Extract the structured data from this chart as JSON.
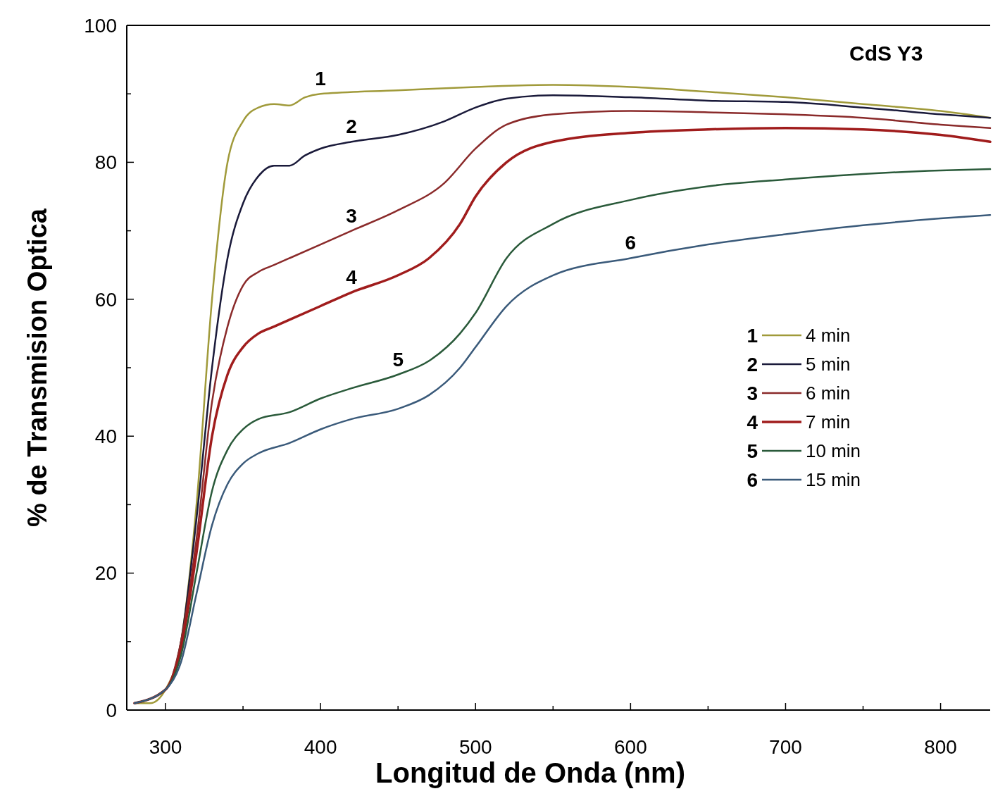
{
  "chart_data": {
    "type": "line",
    "xlabel": "Longitud de Onda (nm)",
    "ylabel": "% de Transmision Optica",
    "xlim": [
      275,
      832
    ],
    "ylim": [
      0,
      100
    ],
    "xticks": [
      300,
      {
        "value": 350,
        "label": null
      },
      400,
      {
        "value": 450,
        "label": null
      },
      500,
      {
        "value": 550,
        "label": null
      },
      600,
      {
        "value": 650,
        "label": null
      },
      700,
      {
        "value": 750,
        "label": null
      },
      800
    ],
    "yticks": [
      0,
      {
        "value": 10,
        "label": null
      },
      20,
      {
        "value": 30,
        "label": null
      },
      40,
      {
        "value": 50,
        "label": null
      },
      60,
      {
        "value": 70,
        "label": null
      },
      80,
      {
        "value": 90,
        "label": null
      },
      100
    ],
    "grid": false,
    "legend": "right",
    "marker": "none",
    "line_style": "solid",
    "series": [
      {
        "name": "4 min",
        "color": "#a09a3a",
        "x": [
          280,
          290,
          300,
          310,
          320,
          330,
          340,
          350,
          360,
          370,
          380,
          390,
          400,
          450,
          500,
          550,
          600,
          650,
          700,
          750,
          800,
          832
        ],
        "values": [
          1,
          1,
          3,
          10,
          30,
          60,
          80,
          86,
          88,
          88.5,
          88.3,
          89.5,
          90,
          90.5,
          91,
          91.3,
          91,
          90.3,
          89.5,
          88.5,
          87.5,
          86.5
        ]
      },
      {
        "name": "5 min",
        "color": "#1a1a3a",
        "x": [
          280,
          300,
          310,
          320,
          330,
          340,
          350,
          360,
          370,
          380,
          390,
          400,
          420,
          450,
          480,
          500,
          520,
          550,
          600,
          650,
          700,
          750,
          800,
          832
        ],
        "values": [
          1,
          3,
          10,
          28,
          50,
          66,
          74,
          78,
          79.5,
          79.5,
          81,
          82,
          83,
          84,
          86,
          88,
          89.3,
          89.8,
          89.5,
          89,
          88.8,
          88,
          87,
          86.5
        ]
      },
      {
        "name": "6 min",
        "color": "#8a2a2a",
        "x": [
          280,
          300,
          310,
          320,
          330,
          340,
          350,
          360,
          370,
          380,
          400,
          420,
          450,
          480,
          500,
          520,
          550,
          600,
          650,
          700,
          750,
          800,
          832
        ],
        "values": [
          1,
          3,
          10,
          25,
          45,
          56,
          62,
          64,
          65,
          66,
          68,
          70,
          73,
          77,
          82,
          85.5,
          87,
          87.5,
          87.3,
          87,
          86.5,
          85.5,
          85
        ]
      },
      {
        "name": "7 min",
        "color": "#a01c1c",
        "x": [
          280,
          300,
          310,
          320,
          330,
          340,
          350,
          360,
          370,
          380,
          400,
          420,
          450,
          470,
          490,
          500,
          520,
          550,
          600,
          650,
          700,
          750,
          800,
          832
        ],
        "values": [
          1,
          3,
          9,
          23,
          40,
          49,
          53,
          55,
          56,
          57,
          59,
          61,
          63.5,
          66,
          71,
          75,
          80,
          83,
          84.3,
          84.8,
          85,
          84.8,
          84,
          83
        ]
      },
      {
        "name": "10 min",
        "color": "#2a5a3a",
        "x": [
          280,
          300,
          310,
          320,
          330,
          340,
          350,
          360,
          380,
          400,
          420,
          450,
          470,
          490,
          500,
          520,
          550,
          600,
          650,
          700,
          750,
          800,
          832
        ],
        "values": [
          1,
          3,
          8,
          20,
          32,
          38,
          41,
          42.5,
          43.5,
          45.5,
          47,
          49,
          51,
          55,
          58,
          66,
          71,
          74.5,
          76.5,
          77.5,
          78.3,
          78.8,
          79
        ]
      },
      {
        "name": "15 min",
        "color": "#3a5a7a",
        "x": [
          280,
          300,
          310,
          320,
          330,
          340,
          350,
          360,
          380,
          400,
          420,
          450,
          470,
          490,
          500,
          520,
          550,
          600,
          650,
          700,
          750,
          800,
          832
        ],
        "values": [
          1,
          3,
          7,
          17,
          27,
          33,
          36,
          37.5,
          39,
          41,
          42.5,
          44,
          46,
          50,
          53,
          59,
          63.5,
          66,
          68,
          69.5,
          70.8,
          71.8,
          72.3
        ]
      }
    ],
    "annotations": [
      "1",
      "2",
      "3",
      "4",
      "5",
      "6",
      "CdS Y3"
    ]
  }
}
